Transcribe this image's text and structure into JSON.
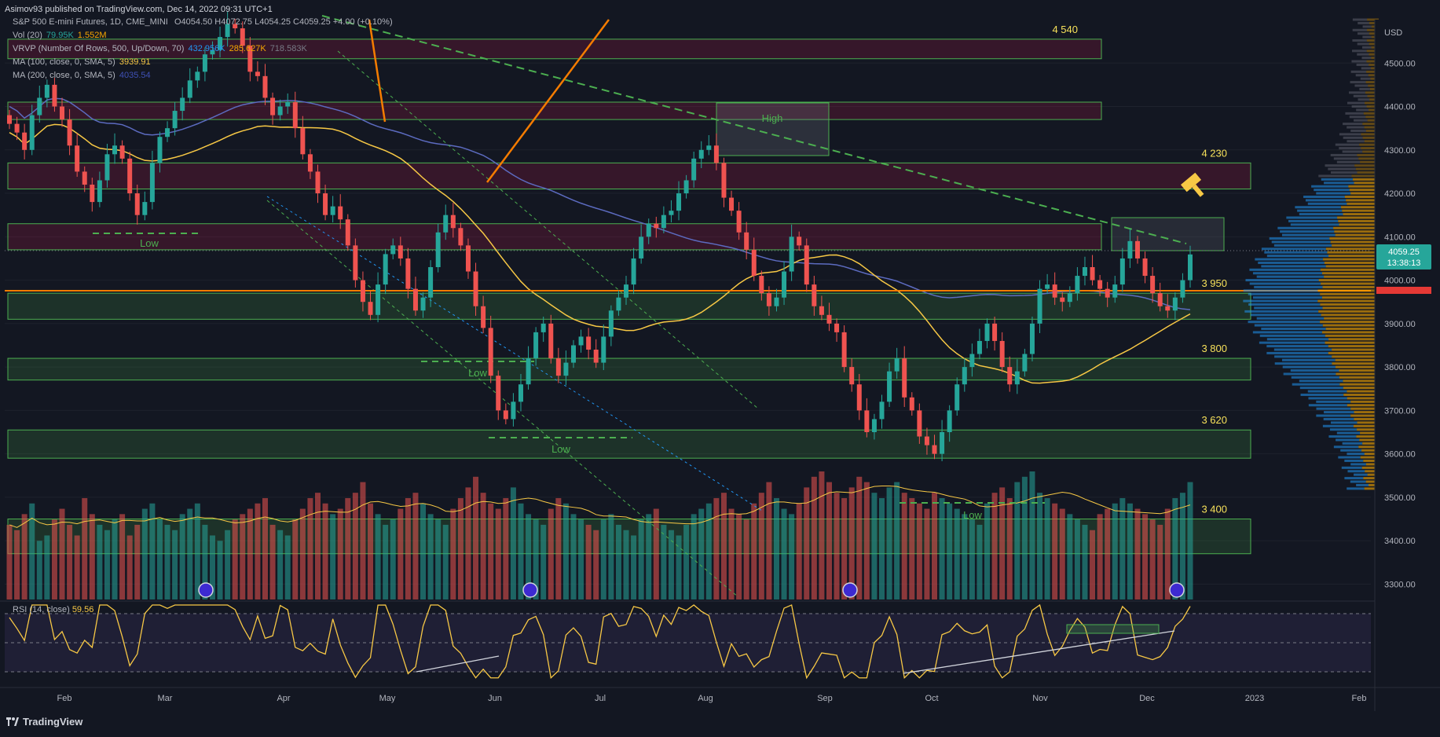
{
  "header": {
    "publisher": "Asimov93 published on TradingView.com, Dec 14, 2022 09:31 UTC+1"
  },
  "instrument": {
    "title": "S&P 500 E-mini Futures, 1D, CME_MINI",
    "ohlc": "O4054.50 H4072.75 L4054.25 C4059.25 +4.00 (+0.10%)",
    "last_price": "4059.25",
    "countdown": "13:38:13",
    "currency": "USD"
  },
  "indicators": [
    {
      "name": "Vol (20)",
      "values": [
        "79.95K",
        "1.552M"
      ],
      "colors": [
        "#26a69a",
        "#f7a600"
      ]
    },
    {
      "name": "VRVP (Number Of Rows, 500, Up/Down, 70)",
      "values": [
        "432.956K",
        "285.627K",
        "718.583K"
      ],
      "colors": [
        "#2196f3",
        "#f7a600",
        "#787b86"
      ]
    },
    {
      "name": "MA (100, close, 0, SMA, 5)",
      "values": [
        "3939.91"
      ],
      "colors": [
        "#f7c845"
      ]
    },
    {
      "name": "MA (200, close, 0, SMA, 5)",
      "values": [
        "4035.54"
      ],
      "colors": [
        "#3f51b5"
      ]
    }
  ],
  "rsi": {
    "label": "RSI (14, close)",
    "value": "59.56"
  },
  "brand": "TradingView",
  "colors": {
    "up": "#26a69a",
    "down": "#ef5350",
    "zone_green": "#4caf50",
    "zone_red": "#b71c4b",
    "ma100": "#f7c845",
    "ma200": "#5c6bc0",
    "level_label": "#f7e15a",
    "orange_line": "#f57c00",
    "rsi_line": "#f7c845"
  },
  "chart_data": {
    "type": "candlestick",
    "x_ticks": [
      "Feb",
      "Mar",
      "Apr",
      "May",
      "Jun",
      "Jul",
      "Aug",
      "Sep",
      "Oct",
      "Nov",
      "Dec",
      "2023",
      "Feb"
    ],
    "y_ticks": [
      "4500.00",
      "4400.00",
      "4300.00",
      "4200.00",
      "4100.00",
      "4000.00",
      "3900.00",
      "3800.00",
      "3700.00",
      "3600.00",
      "3500.00",
      "3400.00",
      "3300.00"
    ],
    "ylim": [
      3270,
      4600
    ],
    "zones": [
      {
        "kind": "red",
        "low": 4510,
        "high": 4555,
        "label": "4 540"
      },
      {
        "kind": "red",
        "low": 4370,
        "high": 4410,
        "label": ""
      },
      {
        "kind": "red",
        "low": 4210,
        "high": 4270,
        "label": "4 230"
      },
      {
        "kind": "red",
        "low": 4070,
        "high": 4130,
        "label": ""
      },
      {
        "kind": "green",
        "low": 3910,
        "high": 3970,
        "label": "3 950"
      },
      {
        "kind": "green",
        "low": 3770,
        "high": 3820,
        "label": "3 800"
      },
      {
        "kind": "green",
        "low": 3590,
        "high": 3655,
        "label": "3 620"
      },
      {
        "kind": "green",
        "low": 3370,
        "high": 3450,
        "label": "3 400"
      }
    ],
    "box_labels": [
      {
        "text": "High",
        "price": 4340
      },
      {
        "text": "Low",
        "price": 4070
      },
      {
        "text": "Low",
        "price": 3780
      },
      {
        "text": "Low",
        "price": 3600
      },
      {
        "text": "Low",
        "price": 3440
      }
    ],
    "closes": [
      4360,
      4340,
      4300,
      4380,
      4420,
      4450,
      4400,
      4370,
      4310,
      4250,
      4220,
      4180,
      4230,
      4290,
      4310,
      4280,
      4200,
      4150,
      4180,
      4270,
      4330,
      4350,
      4390,
      4420,
      4460,
      4480,
      4520,
      4530,
      4560,
      4590,
      4580,
      4540,
      4480,
      4470,
      4420,
      4380,
      4400,
      4410,
      4350,
      4290,
      4250,
      4200,
      4150,
      4170,
      4140,
      4080,
      4000,
      3950,
      3920,
      3990,
      4060,
      4080,
      4050,
      3980,
      3930,
      3960,
      4030,
      4110,
      4150,
      4120,
      4080,
      4020,
      3940,
      3890,
      3780,
      3700,
      3680,
      3720,
      3760,
      3820,
      3880,
      3900,
      3820,
      3780,
      3810,
      3850,
      3870,
      3840,
      3810,
      3870,
      3930,
      3960,
      3990,
      4050,
      4100,
      4130,
      4120,
      4150,
      4160,
      4200,
      4230,
      4280,
      4300,
      4310,
      4270,
      4190,
      4160,
      4110,
      4070,
      4010,
      3970,
      3940,
      3960,
      4020,
      4100,
      4080,
      3990,
      3940,
      3920,
      3900,
      3880,
      3800,
      3760,
      3700,
      3650,
      3680,
      3720,
      3790,
      3820,
      3730,
      3700,
      3640,
      3620,
      3600,
      3650,
      3700,
      3760,
      3800,
      3830,
      3860,
      3900,
      3860,
      3800,
      3760,
      3790,
      3830,
      3900,
      3980,
      3990,
      3960,
      3950,
      3970,
      4010,
      4030,
      4000,
      3980,
      3960,
      3990,
      4050,
      4090,
      4050,
      4010,
      3970,
      3940,
      3930,
      3960,
      4000,
      4059.25
    ],
    "volumes": [
      70,
      65,
      80,
      90,
      55,
      60,
      75,
      85,
      70,
      60,
      95,
      80,
      70,
      65,
      75,
      80,
      60,
      70,
      85,
      90,
      75,
      70,
      65,
      80,
      85,
      90,
      70,
      60,
      55,
      65,
      75,
      80,
      85,
      90,
      95,
      70,
      65,
      60,
      75,
      85,
      95,
      100,
      90,
      80,
      85,
      95,
      100,
      110,
      90,
      80,
      70,
      75,
      85,
      95,
      100,
      90,
      80,
      75,
      70,
      85,
      95,
      105,
      115,
      100,
      90,
      85,
      95,
      105,
      90,
      80,
      75,
      70,
      85,
      95,
      90,
      80,
      75,
      70,
      65,
      75,
      80,
      70,
      65,
      60,
      75,
      80,
      85,
      70,
      65,
      60,
      70,
      80,
      85,
      90,
      95,
      100,
      85,
      80,
      75,
      90,
      100,
      110,
      95,
      85,
      80,
      90,
      105,
      115,
      120,
      110,
      100,
      95,
      105,
      115,
      110,
      100,
      95,
      105,
      110,
      100,
      95,
      90,
      85,
      100,
      95,
      90,
      85,
      80,
      75,
      70,
      90,
      100,
      105,
      95,
      110,
      115,
      120,
      100,
      95,
      90,
      85,
      80,
      75,
      70,
      65,
      80,
      85,
      90,
      95,
      90,
      85,
      80,
      75,
      70,
      85,
      95,
      100,
      110
    ]
  }
}
